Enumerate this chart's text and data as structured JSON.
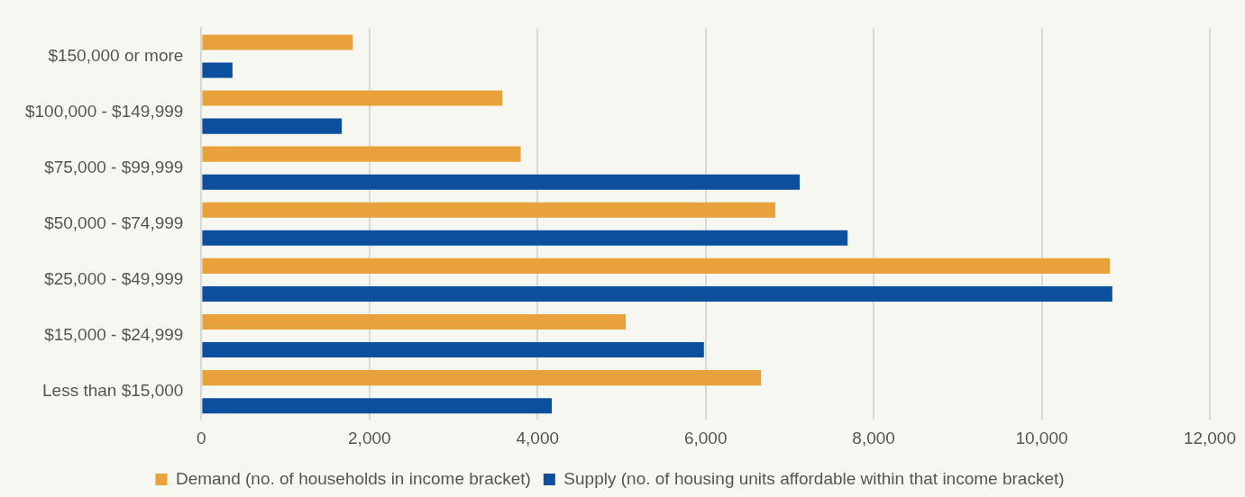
{
  "chart_data": {
    "type": "bar",
    "orientation": "horizontal",
    "categories": [
      "$150,000 or more",
      "$100,000 - $149,999",
      "$75,000 - $99,999",
      "$50,000 - $74,999",
      "$25,000 - $49,999",
      "$15,000 - $24,999",
      "Less than $15,000"
    ],
    "series": [
      {
        "name": "Demand (no. of households in income bracket)",
        "color": "#e9a23b",
        "values": [
          1800,
          3580,
          3800,
          6830,
          10810,
          5050,
          6660
        ]
      },
      {
        "name": "Supply (no. of housing units affordable within that income bracket)",
        "color": "#0c4f9c",
        "values": [
          370,
          1670,
          7120,
          7690,
          10840,
          5980,
          4170
        ]
      }
    ],
    "xlim": [
      0,
      12000
    ],
    "xticks": [
      0,
      {
        "value": 2000,
        "label": "2,000"
      },
      {
        "value": 4000,
        "label": "4,000"
      },
      {
        "value": 6000,
        "label": "6,000"
      },
      {
        "value": 8000,
        "label": "8,000"
      },
      {
        "value": 10000,
        "label": "10,000"
      },
      {
        "value": 12000,
        "label": "12,000"
      }
    ],
    "grid": "x",
    "legend": "bottom"
  }
}
